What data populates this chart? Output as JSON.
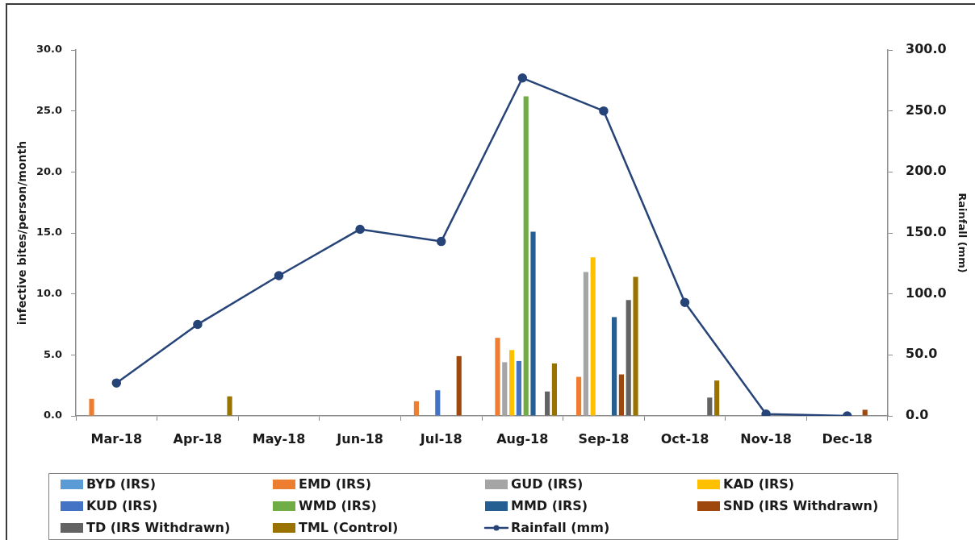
{
  "chart_data": {
    "type": "bar",
    "categories": [
      "Mar-18",
      "Apr-18",
      "May-18",
      "Jun-18",
      "Jul-18",
      "Aug-18",
      "Sep-18",
      "Oct-18",
      "Nov-18",
      "Dec-18"
    ],
    "series": [
      {
        "name": "BYD (IRS)",
        "color": "#5b9bd5",
        "values": [
          null,
          null,
          null,
          null,
          null,
          null,
          null,
          null,
          null,
          null
        ]
      },
      {
        "name": "EMD (IRS)",
        "color": "#ed7d31",
        "values": [
          1.4,
          null,
          null,
          null,
          1.2,
          6.4,
          3.2,
          null,
          null,
          null
        ]
      },
      {
        "name": "GUD (IRS)",
        "color": "#a5a5a5",
        "values": [
          null,
          null,
          null,
          null,
          null,
          4.4,
          11.8,
          null,
          null,
          null
        ]
      },
      {
        "name": "KAD (IRS)",
        "color": "#ffc000",
        "values": [
          null,
          null,
          null,
          null,
          null,
          5.4,
          13.0,
          null,
          null,
          null
        ]
      },
      {
        "name": "KUD (IRS)",
        "color": "#4472c4",
        "values": [
          null,
          null,
          null,
          null,
          2.1,
          4.5,
          null,
          null,
          null,
          null
        ]
      },
      {
        "name": "WMD (IRS)",
        "color": "#70ad47",
        "values": [
          null,
          null,
          null,
          null,
          null,
          26.2,
          null,
          null,
          null,
          null
        ]
      },
      {
        "name": "MMD (IRS)",
        "color": "#255e91",
        "values": [
          null,
          null,
          null,
          null,
          null,
          15.1,
          8.1,
          null,
          null,
          null
        ]
      },
      {
        "name": "SND (IRS Withdrawn)",
        "color": "#9e480e",
        "values": [
          null,
          null,
          null,
          null,
          4.9,
          null,
          3.4,
          null,
          null,
          0.5
        ]
      },
      {
        "name": "TD (IRS Withdrawn)",
        "color": "#636363",
        "values": [
          null,
          null,
          null,
          null,
          null,
          2.0,
          9.5,
          1.5,
          null,
          null
        ]
      },
      {
        "name": "TML (Control)",
        "color": "#997300",
        "values": [
          null,
          1.6,
          null,
          null,
          null,
          4.3,
          11.4,
          2.9,
          null,
          null
        ]
      },
      {
        "name": "Rainfall (mm)",
        "type": "line",
        "axis": "y2",
        "marker": "circle",
        "color": "#264478",
        "values": [
          27,
          75,
          115,
          153,
          143,
          277,
          250,
          93,
          1.5,
          0
        ]
      }
    ],
    "ylabel": "infective bites/person/month",
    "y2label": "Rainfall (mm)",
    "ylim": [
      0,
      30
    ],
    "yticks": [
      {
        "value": 0,
        "label": "0.0"
      },
      {
        "value": 5,
        "label": "5.0"
      },
      {
        "value": 10,
        "label": "10.0"
      },
      {
        "value": 15,
        "label": "15.0"
      },
      {
        "value": 20,
        "label": "20.0"
      },
      {
        "value": 25,
        "label": "25.0"
      },
      {
        "value": 30,
        "label": "30.0"
      }
    ],
    "y2lim": [
      0,
      300
    ],
    "y2ticks": [
      {
        "value": 0,
        "label": "0.0"
      },
      {
        "value": 50,
        "label": "50.0"
      },
      {
        "value": 100,
        "label": "100.0"
      },
      {
        "value": 150,
        "label": "150.0"
      },
      {
        "value": 200,
        "label": "200.0"
      },
      {
        "value": 250,
        "label": "250.0"
      },
      {
        "value": 300,
        "label": "300.0"
      }
    ],
    "grid": false,
    "legend": "bottom"
  }
}
